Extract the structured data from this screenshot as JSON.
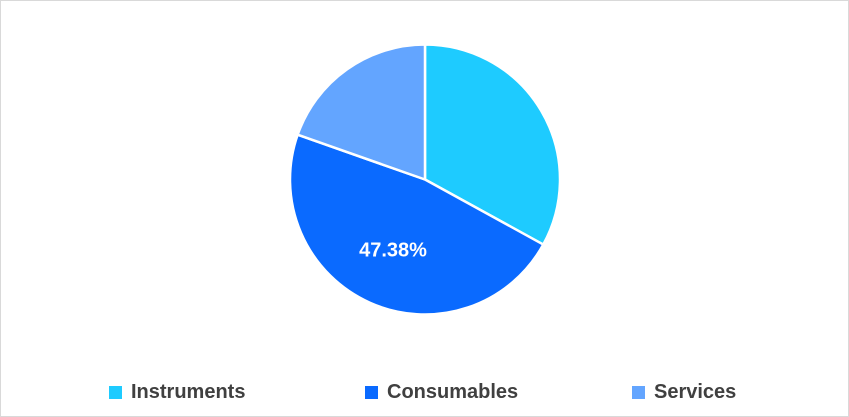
{
  "chart_data": {
    "type": "pie",
    "title": "",
    "start_angle_deg": 0,
    "direction": "clockwise",
    "legend_position": "bottom",
    "slices": [
      {
        "label": "Instruments",
        "value": 33.0,
        "color": "#1ecbff",
        "data_label": ""
      },
      {
        "label": "Consumables",
        "value": 47.38,
        "color": "#0a6aff",
        "data_label": "47.38%"
      },
      {
        "label": "Services",
        "value": 19.62,
        "color": "#63a5ff",
        "data_label": ""
      }
    ]
  }
}
